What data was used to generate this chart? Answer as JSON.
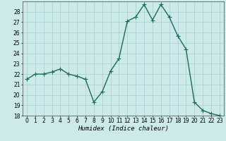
{
  "x": [
    0,
    1,
    2,
    3,
    4,
    5,
    6,
    7,
    8,
    9,
    10,
    11,
    12,
    13,
    14,
    15,
    16,
    17,
    18,
    19,
    20,
    21,
    22,
    23
  ],
  "y": [
    21.5,
    22.0,
    22.0,
    22.2,
    22.5,
    22.0,
    21.8,
    21.5,
    19.3,
    20.3,
    22.3,
    23.5,
    27.1,
    27.5,
    28.7,
    27.2,
    28.7,
    27.5,
    25.7,
    24.4,
    19.3,
    18.5,
    18.2,
    18.0
  ],
  "line_color": "#1a6b5a",
  "marker": "D",
  "marker_size": 2.2,
  "background_color": "#cceaea",
  "grid_color": "#aacccc",
  "xlabel": "Humidex (Indice chaleur)",
  "ylim": [
    18,
    29
  ],
  "xlim_min": -0.5,
  "xlim_max": 23.5,
  "yticks": [
    18,
    19,
    20,
    21,
    22,
    23,
    24,
    25,
    26,
    27,
    28
  ],
  "xticks": [
    0,
    1,
    2,
    3,
    4,
    5,
    6,
    7,
    8,
    9,
    10,
    11,
    12,
    13,
    14,
    15,
    16,
    17,
    18,
    19,
    20,
    21,
    22,
    23
  ],
  "tick_fontsize": 5.5,
  "xlabel_fontsize": 6.5,
  "line_width": 1.0
}
